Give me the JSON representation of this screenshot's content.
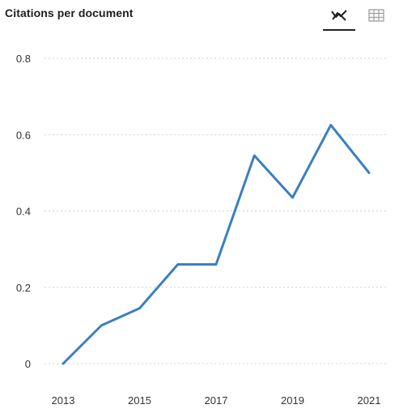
{
  "header": {
    "title": "Citations per document",
    "icons": [
      "line-chart-icon",
      "table-grid-icon"
    ]
  },
  "colors": {
    "line": "#3a7fc1",
    "grid": "#cfcfcf",
    "tick_text": "#333333"
  },
  "chart_data": {
    "type": "line",
    "title": "Citations per document",
    "xlabel": "",
    "ylabel": "",
    "x": [
      2013,
      2014,
      2015,
      2016,
      2017,
      2018,
      2019,
      2020,
      2021
    ],
    "series": [
      {
        "values": [
          0.0,
          0.1,
          0.145,
          0.26,
          0.26,
          0.545,
          0.435,
          0.625,
          0.5
        ]
      }
    ],
    "xticks": [
      "2013",
      "2015",
      "2017",
      "2019",
      "2021"
    ],
    "yticks": [
      "0",
      "0.2",
      "0.4",
      "0.6",
      "0.8"
    ],
    "ylim": [
      0,
      0.8
    ],
    "xlim": [
      2013,
      2021
    ],
    "grid": "horizontal dotted",
    "legend": "none"
  }
}
